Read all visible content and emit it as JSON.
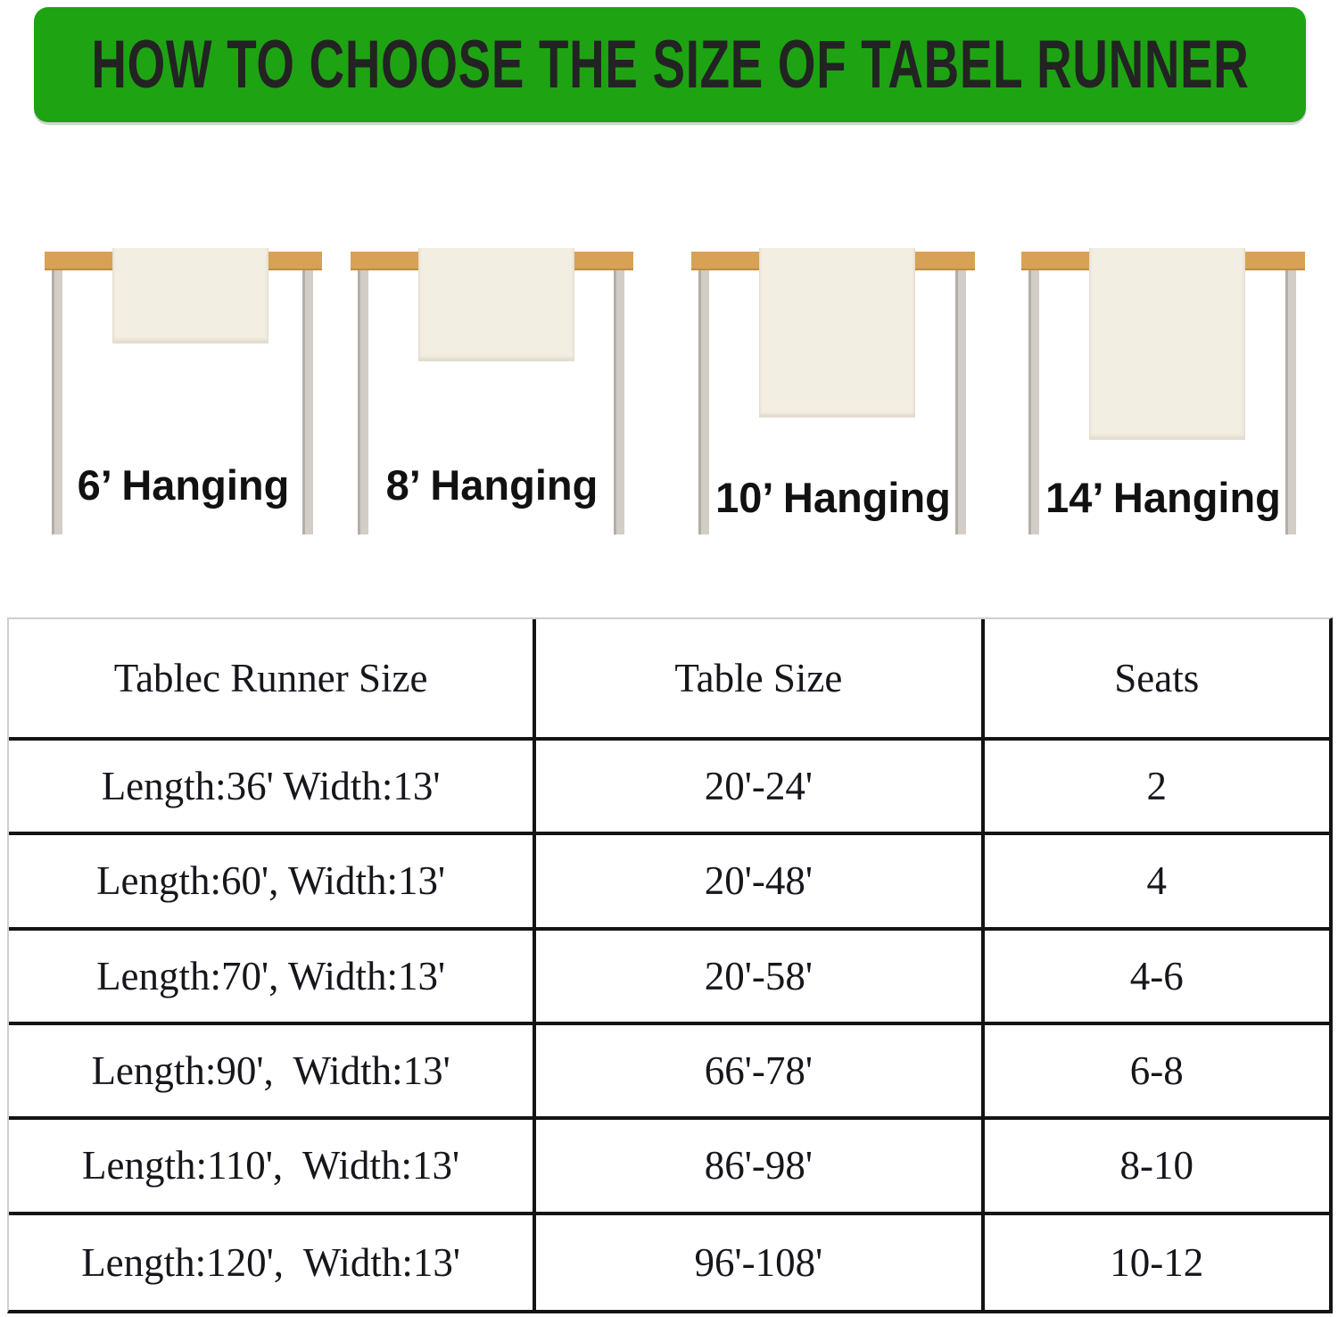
{
  "header": {
    "title": "HOW TO CHOOSE THE SIZE OF TABEL RUNNER"
  },
  "diagrams": [
    {
      "label": "6’ Hanging"
    },
    {
      "label": "8’ Hanging"
    },
    {
      "label": "10’ Hanging"
    },
    {
      "label": "14’ Hanging"
    }
  ],
  "colors": {
    "banner_green": "#1ea313",
    "banner_text": "#232323",
    "tabletop_wood": "#d7a256",
    "table_leg_gray": "#d2cdc6",
    "runner_cream": "#f2eee1",
    "table_border_black": "#141414",
    "table_border_light": "#cfcfcf"
  },
  "table": {
    "columns": [
      "Tablec Runner Size",
      "Table Size",
      "Seats"
    ],
    "rows": [
      {
        "runner_size": "Length:36' Width:13'",
        "table_size": "20'-24'",
        "seats": "2"
      },
      {
        "runner_size": "Length:60', Width:13'",
        "table_size": "20'-48'",
        "seats": "4"
      },
      {
        "runner_size": "Length:70', Width:13'",
        "table_size": "20'-58'",
        "seats": "4-6"
      },
      {
        "runner_size": "Length:90',  Width:13'",
        "table_size": "66'-78'",
        "seats": "6-8"
      },
      {
        "runner_size": "Length:110',  Width:13'",
        "table_size": "86'-98'",
        "seats": "8-10"
      },
      {
        "runner_size": "Length:120',  Width:13'",
        "table_size": "96'-108'",
        "seats": "10-12"
      }
    ]
  }
}
